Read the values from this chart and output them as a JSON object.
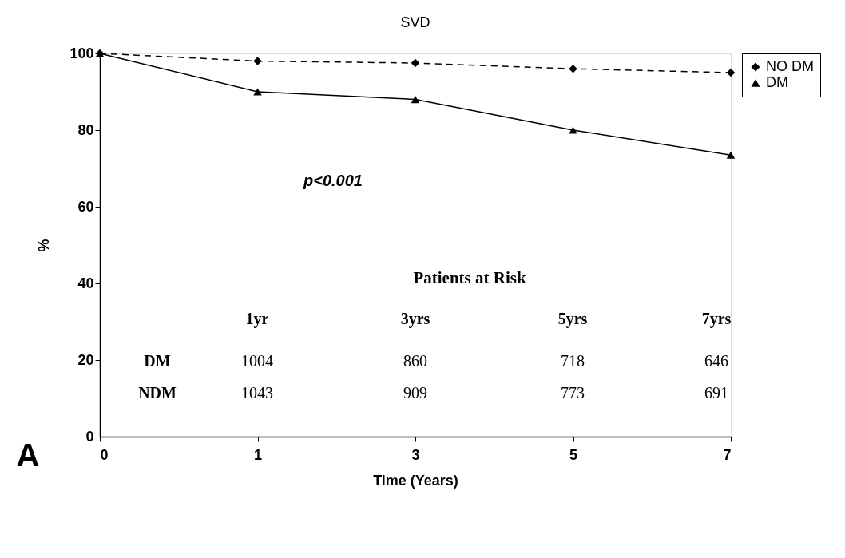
{
  "chart_data": {
    "type": "line",
    "title": "SVD",
    "xlabel": "Time (Years)",
    "ylabel": "%",
    "categories": [
      "0",
      "1",
      "3",
      "5",
      "7"
    ],
    "series": [
      {
        "name": "NO DM",
        "color": "#000000",
        "values": [
          100,
          98,
          97.5,
          96,
          95
        ],
        "line_style": "dashed",
        "marker": "diamond"
      },
      {
        "name": "DM",
        "color": "#000000",
        "values": [
          100,
          90,
          88,
          80,
          73.5
        ],
        "line_style": "solid",
        "marker": "triangle"
      }
    ],
    "ylim": [
      0,
      100
    ],
    "yticks": [
      0,
      20,
      40,
      60,
      80,
      100
    ],
    "grid": false,
    "legend": "right",
    "annotations": [
      "p<0.001",
      "Patients at Risk",
      "1yr",
      "3yrs",
      "5yrs",
      "7yrs",
      "DM",
      "1004",
      "860",
      "718",
      "646",
      "NDM",
      "1043",
      "909",
      "773",
      "691",
      "A"
    ]
  }
}
